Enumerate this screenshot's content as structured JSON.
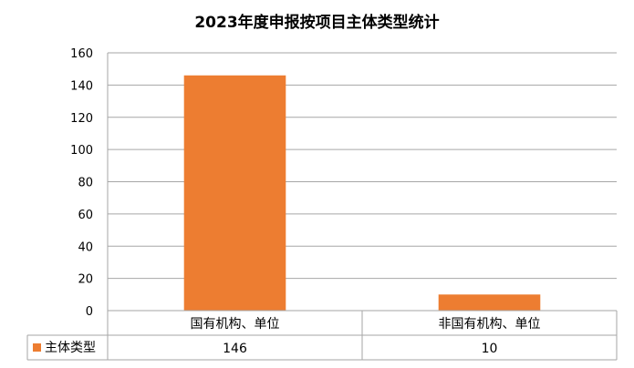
{
  "chart_data": {
    "type": "bar",
    "title": "2023年度申报按项目主体类型统计",
    "categories": [
      "国有机构、单位",
      "非国有机构、单位"
    ],
    "series": [
      {
        "name": "主体类型",
        "values": [
          146,
          10
        ],
        "color": "#ed7d31"
      }
    ],
    "ylim": [
      0,
      160
    ],
    "yticks": [
      0,
      20,
      40,
      60,
      80,
      100,
      120,
      140,
      160
    ],
    "grid": true,
    "legend": "data-table-left",
    "data_table": true,
    "xlabel": "",
    "ylabel": ""
  }
}
